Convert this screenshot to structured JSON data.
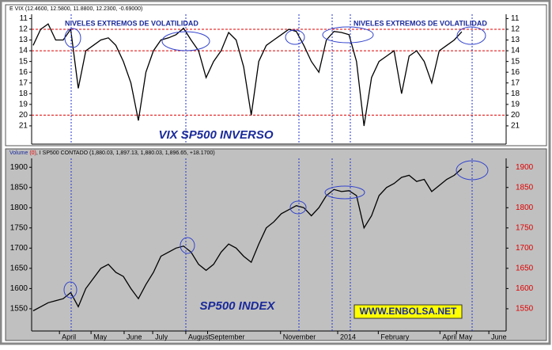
{
  "chart_data": [
    {
      "type": "line",
      "header": "E VIX (12.4600, 12.5800, 11.8800, 12.2300, -0.69000)",
      "annotations": [
        "NIVELES EXTREMOS DE VOLATILIDAD",
        "NIVELES EXTREMOS DE VOLATILIDAD",
        "VIX SP500 INVERSO"
      ],
      "values": [
        13.5,
        12,
        11.5,
        13,
        13,
        12,
        17.5,
        14,
        13.5,
        13,
        12.8,
        13.5,
        15,
        17,
        20.5,
        16,
        14,
        13,
        12.8,
        12.5,
        11.9,
        13,
        14,
        16.5,
        15,
        14,
        12.3,
        13,
        15.5,
        20,
        15,
        13.5,
        13,
        12.5,
        12,
        12.2,
        13.5,
        15,
        16,
        13,
        12.2,
        12.3,
        12.5,
        15,
        21,
        16.5,
        15,
        14.5,
        14,
        18,
        14.5,
        14,
        15,
        17,
        14,
        13.5,
        13,
        12.23
      ],
      "color": "#000000",
      "xlim": [
        -0.2,
        62.9
      ],
      "ylim": [
        10.6,
        22.7
      ],
      "y_inverted": true,
      "yticks": [
        11,
        12,
        13,
        14,
        15,
        16,
        17,
        18,
        19,
        20,
        21
      ],
      "hlines": [
        12,
        14,
        20
      ],
      "hline_color": "#e00000",
      "background": "#ffffff",
      "right_axis_color": "#000000"
    },
    {
      "type": "line",
      "header": [
        "Volume",
        "(0)",
        ", I SP500 CONTADO (1,880.03, 1,897.13, 1,880.03, 1,896.65, +18.1700)"
      ],
      "annotations": [
        "SP500 INDEX",
        "WWW.ENBOLSA.NET"
      ],
      "values": [
        1545,
        1555,
        1565,
        1570,
        1575,
        1590,
        1555,
        1600,
        1625,
        1650,
        1660,
        1640,
        1630,
        1600,
        1575,
        1610,
        1640,
        1680,
        1690,
        1700,
        1705,
        1690,
        1660,
        1645,
        1660,
        1690,
        1710,
        1700,
        1680,
        1665,
        1710,
        1750,
        1765,
        1785,
        1795,
        1805,
        1800,
        1780,
        1800,
        1830,
        1845,
        1840,
        1842,
        1830,
        1750,
        1780,
        1830,
        1850,
        1860,
        1875,
        1880,
        1865,
        1870,
        1840,
        1855,
        1870,
        1880,
        1896.65
      ],
      "color": "#000000",
      "xlim": [
        -0.2,
        62.9
      ],
      "ylim": [
        1495,
        1922
      ],
      "yticks": [
        1550,
        1600,
        1650,
        1700,
        1750,
        1800,
        1850,
        1900
      ],
      "xticks": [
        {
          "value": 3.5,
          "label": "April"
        },
        {
          "value": 7.7,
          "label": "May"
        },
        {
          "value": 12.1,
          "label": "June"
        },
        {
          "value": 15.9,
          "label": "July"
        },
        {
          "value": 20.3,
          "label": "August"
        },
        {
          "value": 23.2,
          "label": "September"
        },
        {
          "value": 32.9,
          "label": "November"
        },
        {
          "value": 40.5,
          "label": "2014"
        },
        {
          "value": 45.9,
          "label": "February"
        },
        {
          "value": 54.1,
          "label": "April"
        },
        {
          "value": 56.3,
          "label": "May"
        },
        {
          "value": 60.6,
          "label": "June"
        }
      ],
      "background": "#c0c0c0",
      "right_axis_color": "#e00000"
    }
  ]
}
